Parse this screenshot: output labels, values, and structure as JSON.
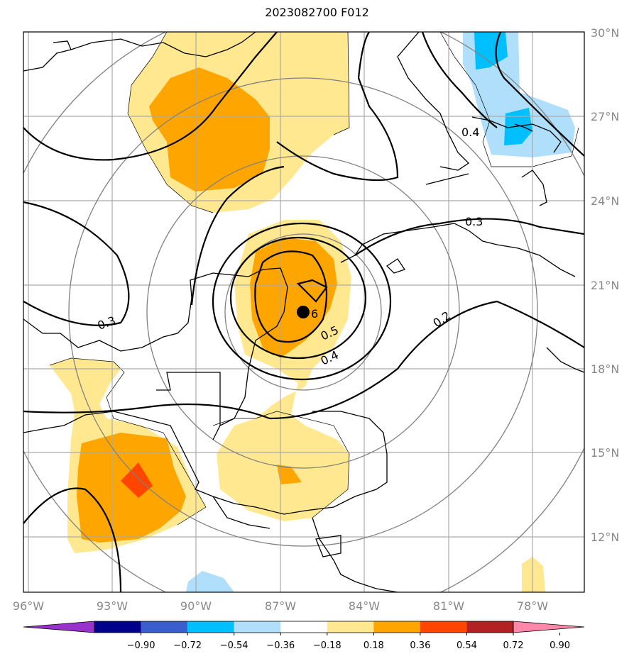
{
  "title": "2023082700 F012",
  "map": {
    "lon_range": [
      -96,
      -76.8
    ],
    "lat_range": [
      10,
      30
    ],
    "lat_labels": [
      "30°N",
      "27°N",
      "24°N",
      "21°N",
      "18°N",
      "15°N",
      "12°N"
    ],
    "lon_labels": [
      "96°W",
      "93°W",
      "90°W",
      "87°W",
      "84°W",
      "81°W",
      "78°W"
    ],
    "grid_color": "#aaaaaa",
    "label_color": "#888888",
    "center_marker": {
      "lon": -86.2,
      "lat": 19.9,
      "label": "6"
    }
  },
  "contour_labels": [
    "0.3",
    "0.4",
    "0.3",
    "0.5",
    "0.4",
    "0.2"
  ],
  "colorbar": {
    "colors": [
      "#9932cc",
      "#00008b",
      "#3a5fcd",
      "#00bfff",
      "#afdffa",
      "#ffffff",
      "#ffe88f",
      "#ffa500",
      "#ff4500",
      "#b22222",
      "#ff88aa"
    ],
    "ticks": [
      "−0.90",
      "−0.72",
      "−0.54",
      "−0.36",
      "−0.18",
      "0.18",
      "0.36",
      "0.54",
      "0.72",
      "0.90"
    ]
  }
}
